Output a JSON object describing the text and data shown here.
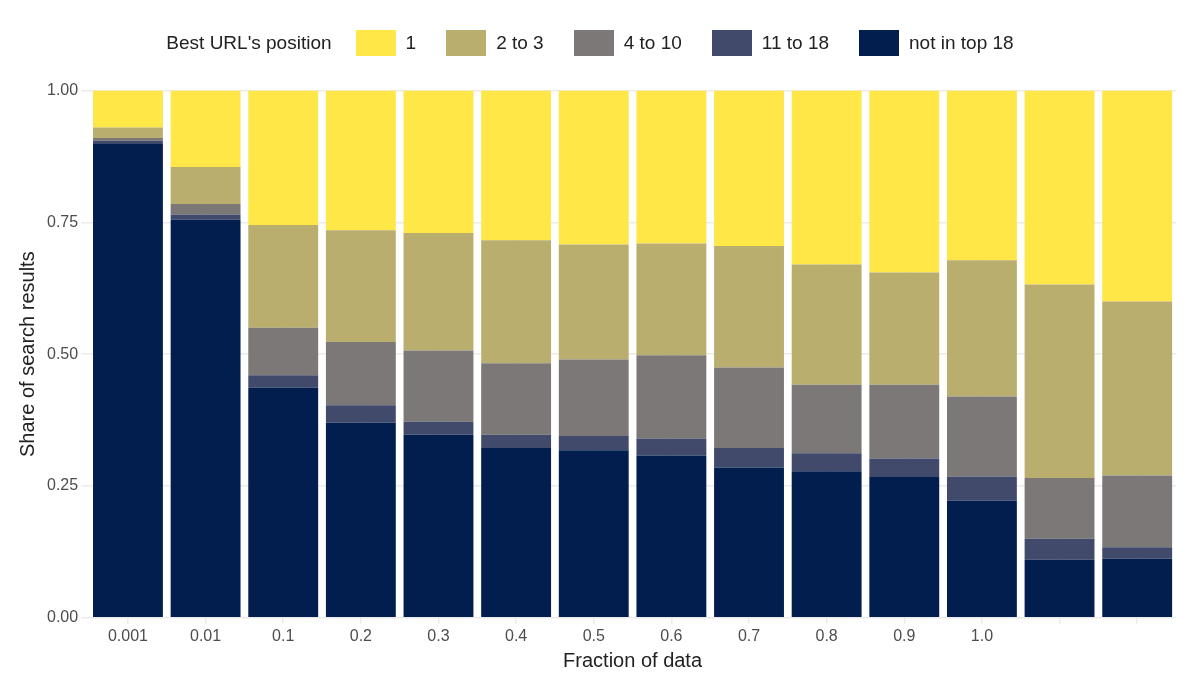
{
  "chart_data": {
    "type": "bar",
    "stacked": true,
    "xlabel": "Fraction of data",
    "ylabel": "Share of search results",
    "legend_title": "Best URL's position",
    "legend": "top",
    "categories": [
      "0.001",
      "0.01",
      "0.1",
      "0.2",
      "0.3",
      "0.4",
      "0.5",
      "0.6",
      "0.7",
      "0.8",
      "0.9",
      "1.0",
      null,
      null
    ],
    "ylim": [
      0,
      1
    ],
    "yticks": [
      {
        "value": 0,
        "label": "0.00"
      },
      {
        "value": 0.25,
        "label": "0.25"
      },
      {
        "value": 0.5,
        "label": "0.50"
      },
      {
        "value": 0.75,
        "label": "0.75"
      },
      {
        "value": 1,
        "label": "1.00"
      }
    ],
    "grid": true,
    "series": [
      {
        "name": "not in top 18",
        "color": "#011e4f",
        "values": [
          0.9,
          0.755,
          0.437,
          0.37,
          0.347,
          0.322,
          0.318,
          0.308,
          0.285,
          0.278,
          0.267,
          0.222,
          0.11,
          0.112
        ]
      },
      {
        "name": "11 to 18",
        "color": "#414a6b",
        "values": [
          0.005,
          0.01,
          0.023,
          0.033,
          0.025,
          0.025,
          0.027,
          0.032,
          0.037,
          0.034,
          0.035,
          0.046,
          0.04,
          0.022
        ]
      },
      {
        "name": "4 to 10",
        "color": "#7c7878",
        "values": [
          0.005,
          0.02,
          0.09,
          0.12,
          0.135,
          0.136,
          0.145,
          0.158,
          0.153,
          0.13,
          0.14,
          0.152,
          0.115,
          0.136
        ]
      },
      {
        "name": "2 to 3",
        "color": "#b9ae6e",
        "values": [
          0.02,
          0.07,
          0.195,
          0.212,
          0.223,
          0.233,
          0.218,
          0.212,
          0.23,
          0.228,
          0.213,
          0.258,
          0.367,
          0.33
        ]
      },
      {
        "name": "1",
        "color": "#fee746",
        "values": [
          0.07,
          0.145,
          0.255,
          0.265,
          0.27,
          0.284,
          0.292,
          0.29,
          0.295,
          0.33,
          0.345,
          0.322,
          0.368,
          0.4
        ]
      }
    ]
  }
}
